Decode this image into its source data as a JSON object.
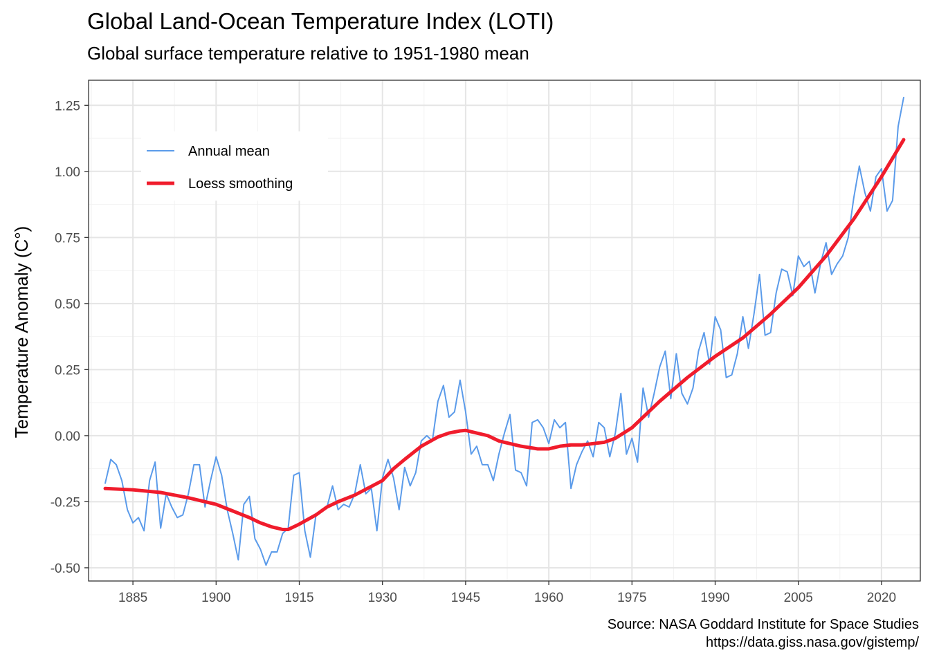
{
  "title": "Global Land-Ocean Temperature Index (LOTI)",
  "subtitle": "Global surface temperature relative to 1951-1980 mean",
  "caption": {
    "line1": "Source: NASA Goddard Institute for Space Studies",
    "line2": "https://data.giss.nasa.gov/gistemp/"
  },
  "colors": {
    "annual": "#5B9BEA",
    "loess": "#F01C2C",
    "grid_major": "#E5E5E5",
    "grid_minor": "#F2F2F2",
    "panel_border": "#333333",
    "tick_text": "#4D4D4D"
  },
  "chart_data": {
    "type": "line",
    "ylabel": "Temperature Anomaly (C°)",
    "xlabel": "",
    "xlim": [
      1880,
      2024
    ],
    "ylim": [
      -0.5,
      1.3
    ],
    "x_ticks": [
      1885,
      1900,
      1915,
      1930,
      1945,
      1960,
      1975,
      1990,
      2005,
      2020
    ],
    "y_ticks": [
      -0.5,
      -0.25,
      0.0,
      0.25,
      0.5,
      0.75,
      1.0,
      1.25
    ],
    "y_tick_labels": [
      "-0.50",
      "-0.25",
      "0.00",
      "0.25",
      "0.50",
      "0.75",
      "1.00",
      "1.25"
    ],
    "grid": true,
    "legend": {
      "position": "top-left-inside",
      "entries": [
        "Annual mean",
        "Loess smoothing"
      ]
    },
    "series": [
      {
        "name": "Annual mean",
        "style": "thin",
        "x": [
          1880,
          1881,
          1882,
          1883,
          1884,
          1885,
          1886,
          1887,
          1888,
          1889,
          1890,
          1891,
          1892,
          1893,
          1894,
          1895,
          1896,
          1897,
          1898,
          1899,
          1900,
          1901,
          1902,
          1903,
          1904,
          1905,
          1906,
          1907,
          1908,
          1909,
          1910,
          1911,
          1912,
          1913,
          1914,
          1915,
          1916,
          1917,
          1918,
          1919,
          1920,
          1921,
          1922,
          1923,
          1924,
          1925,
          1926,
          1927,
          1928,
          1929,
          1930,
          1931,
          1932,
          1933,
          1934,
          1935,
          1936,
          1937,
          1938,
          1939,
          1940,
          1941,
          1942,
          1943,
          1944,
          1945,
          1946,
          1947,
          1948,
          1949,
          1950,
          1951,
          1952,
          1953,
          1954,
          1955,
          1956,
          1957,
          1958,
          1959,
          1960,
          1961,
          1962,
          1963,
          1964,
          1965,
          1966,
          1967,
          1968,
          1969,
          1970,
          1971,
          1972,
          1973,
          1974,
          1975,
          1976,
          1977,
          1978,
          1979,
          1980,
          1981,
          1982,
          1983,
          1984,
          1985,
          1986,
          1987,
          1988,
          1989,
          1990,
          1991,
          1992,
          1993,
          1994,
          1995,
          1996,
          1997,
          1998,
          1999,
          2000,
          2001,
          2002,
          2003,
          2004,
          2005,
          2006,
          2007,
          2008,
          2009,
          2010,
          2011,
          2012,
          2013,
          2014,
          2015,
          2016,
          2017,
          2018,
          2019,
          2020,
          2021,
          2022,
          2023,
          2024
        ],
        "y": [
          -0.18,
          -0.09,
          -0.11,
          -0.17,
          -0.28,
          -0.33,
          -0.31,
          -0.36,
          -0.17,
          -0.1,
          -0.35,
          -0.22,
          -0.27,
          -0.31,
          -0.3,
          -0.22,
          -0.11,
          -0.11,
          -0.27,
          -0.17,
          -0.08,
          -0.15,
          -0.28,
          -0.37,
          -0.47,
          -0.26,
          -0.23,
          -0.39,
          -0.43,
          -0.49,
          -0.44,
          -0.44,
          -0.37,
          -0.35,
          -0.15,
          -0.14,
          -0.36,
          -0.46,
          -0.3,
          -0.28,
          -0.27,
          -0.19,
          -0.28,
          -0.26,
          -0.27,
          -0.22,
          -0.11,
          -0.22,
          -0.2,
          -0.36,
          -0.16,
          -0.09,
          -0.16,
          -0.28,
          -0.12,
          -0.19,
          -0.14,
          -0.02,
          0.0,
          -0.02,
          0.13,
          0.19,
          0.07,
          0.09,
          0.21,
          0.09,
          -0.07,
          -0.04,
          -0.11,
          -0.11,
          -0.17,
          -0.07,
          0.01,
          0.08,
          -0.13,
          -0.14,
          -0.19,
          0.05,
          0.06,
          0.03,
          -0.03,
          0.06,
          0.03,
          0.05,
          -0.2,
          -0.11,
          -0.06,
          -0.02,
          -0.08,
          0.05,
          0.03,
          -0.08,
          0.01,
          0.16,
          -0.07,
          -0.01,
          -0.1,
          0.18,
          0.07,
          0.16,
          0.26,
          0.32,
          0.14,
          0.31,
          0.16,
          0.12,
          0.18,
          0.32,
          0.39,
          0.27,
          0.45,
          0.4,
          0.22,
          0.23,
          0.31,
          0.45,
          0.33,
          0.46,
          0.61,
          0.38,
          0.39,
          0.54,
          0.63,
          0.62,
          0.53,
          0.68,
          0.64,
          0.66,
          0.54,
          0.65,
          0.73,
          0.61,
          0.65,
          0.68,
          0.75,
          0.9,
          1.02,
          0.92,
          0.85,
          0.98,
          1.01,
          0.85,
          0.89,
          1.17,
          1.28
        ]
      },
      {
        "name": "Loess smoothing",
        "style": "thick",
        "x": [
          1880,
          1885,
          1890,
          1895,
          1900,
          1903,
          1906,
          1908,
          1910,
          1912,
          1913,
          1915,
          1918,
          1920,
          1922,
          1925,
          1930,
          1932,
          1934,
          1937,
          1940,
          1942,
          1944,
          1945,
          1946,
          1949,
          1950,
          1951,
          1955,
          1958,
          1960,
          1962,
          1964,
          1966,
          1970,
          1972,
          1975,
          1978,
          1980,
          1985,
          1990,
          1995,
          2000,
          2005,
          2010,
          2015,
          2020,
          2024
        ],
        "y": [
          -0.2,
          -0.205,
          -0.215,
          -0.235,
          -0.26,
          -0.285,
          -0.31,
          -0.33,
          -0.345,
          -0.355,
          -0.355,
          -0.335,
          -0.3,
          -0.27,
          -0.25,
          -0.225,
          -0.17,
          -0.125,
          -0.09,
          -0.04,
          -0.005,
          0.01,
          0.018,
          0.02,
          0.015,
          0.0,
          -0.01,
          -0.02,
          -0.04,
          -0.05,
          -0.05,
          -0.04,
          -0.035,
          -0.035,
          -0.025,
          -0.01,
          0.03,
          0.09,
          0.13,
          0.22,
          0.3,
          0.37,
          0.46,
          0.56,
          0.68,
          0.82,
          0.98,
          1.12
        ]
      }
    ]
  }
}
